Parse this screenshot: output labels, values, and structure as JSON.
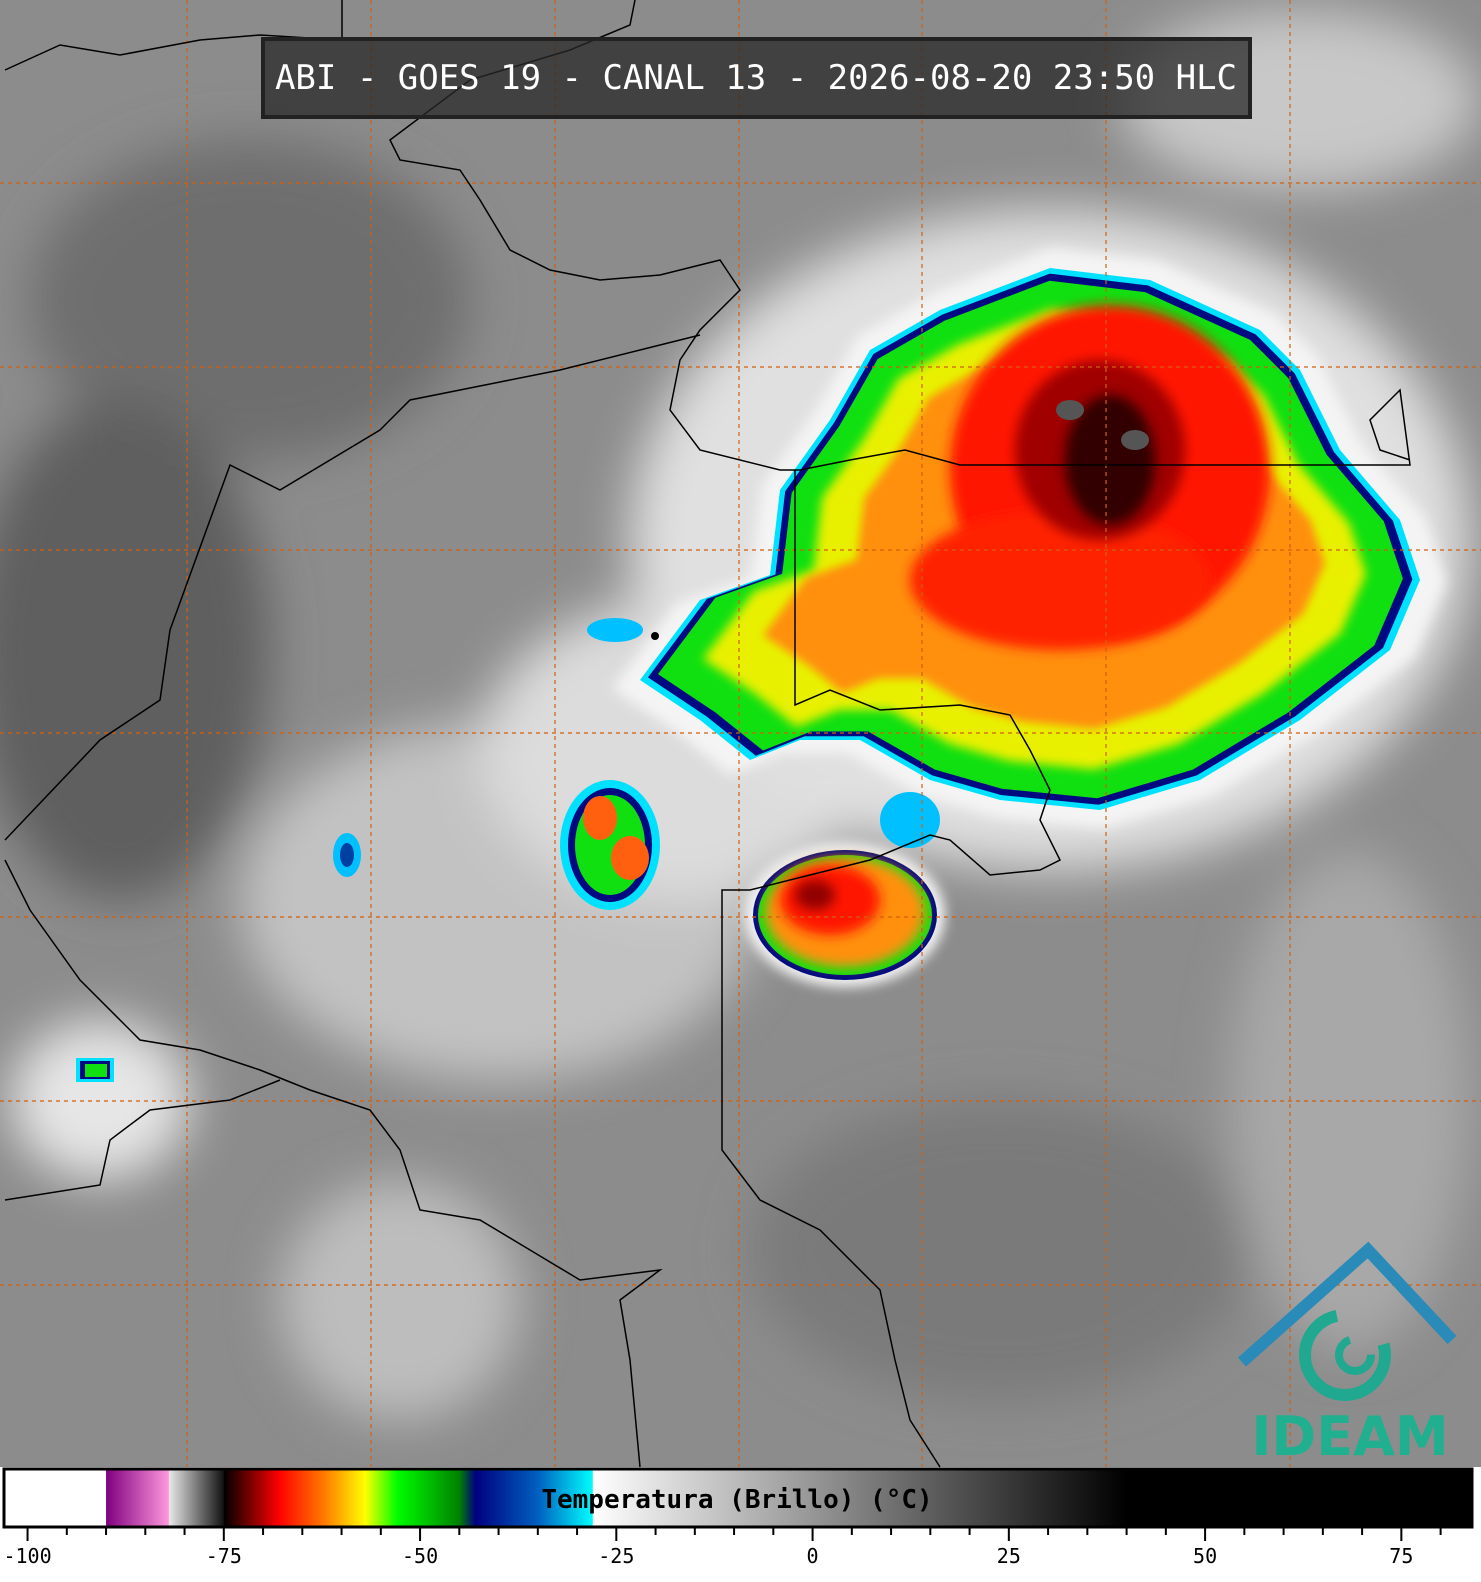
{
  "header": {
    "title": "ABI - GOES 19 - CANAL 13 - 2026-08-20 23:50 HLC"
  },
  "logo": {
    "text": "IDEAM"
  },
  "chart_data": {
    "type": "colorbar",
    "title": "Temperatura (Brillo) (°C)",
    "xlim": [
      -103,
      84
    ],
    "xticks": [
      -100,
      -75,
      -50,
      -25,
      0,
      25,
      50,
      75
    ],
    "minor_xticks": [
      -95,
      -90,
      -85,
      -80,
      -70,
      -65,
      -60,
      -55,
      -45,
      -40,
      -35,
      -30,
      -20,
      -15,
      -10,
      -5,
      5,
      10,
      15,
      20,
      30,
      35,
      40,
      45,
      55,
      60,
      65,
      70,
      80
    ],
    "stops": [
      {
        "value": -103,
        "color": "#ffffff"
      },
      {
        "value": -90,
        "color": "#ffffff"
      },
      {
        "value": -90,
        "color": "#800080"
      },
      {
        "value": -82,
        "color": "#ff99dd"
      },
      {
        "value": -82,
        "color": "#e8e8e8"
      },
      {
        "value": -75,
        "color": "#101010"
      },
      {
        "value": -75,
        "color": "#000000"
      },
      {
        "value": -68,
        "color": "#ff0000"
      },
      {
        "value": -62,
        "color": "#ff8000"
      },
      {
        "value": -57,
        "color": "#ffff00"
      },
      {
        "value": -53,
        "color": "#00ff00"
      },
      {
        "value": -45,
        "color": "#008000"
      },
      {
        "value": -43,
        "color": "#000080"
      },
      {
        "value": -35,
        "color": "#0060c0"
      },
      {
        "value": -28,
        "color": "#00ffff"
      },
      {
        "value": -28,
        "color": "#ffffff"
      },
      {
        "value": 40,
        "color": "#000000"
      },
      {
        "value": 84,
        "color": "#000000"
      }
    ]
  }
}
